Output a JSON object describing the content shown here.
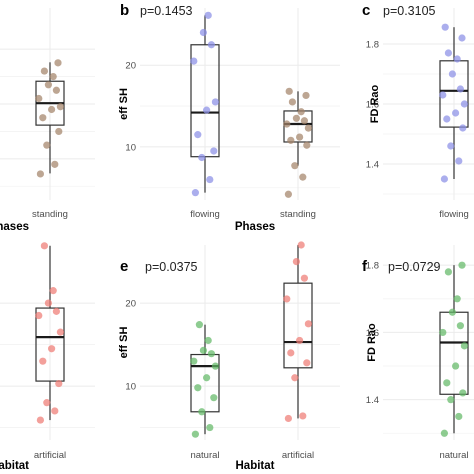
{
  "chart_data": [
    {
      "panel": "a",
      "type": "box",
      "title": "",
      "ylabel": "",
      "xlabel": "Phases",
      "xlabel_visible": "hases",
      "categories": [
        "standing"
      ],
      "point_color": "#a4846a",
      "ylim": [
        1.25,
        1.95
      ],
      "yticks": [
        1.4,
        1.6,
        1.8
      ],
      "series": [
        {
          "category": "standing",
          "box": {
            "q1": 1.523,
            "median": 1.603,
            "q3": 1.683,
            "whisker_low": 1.347,
            "whisker_high": 1.752
          },
          "points": [
            1.345,
            1.38,
            1.45,
            1.5,
            1.55,
            1.58,
            1.59,
            1.62,
            1.65,
            1.67,
            1.7,
            1.72,
            1.75
          ]
        }
      ]
    },
    {
      "panel": "b",
      "type": "box",
      "title": "p=0.1453",
      "ylabel": "eff SH",
      "xlabel": "Phases",
      "categories": [
        "flowing",
        "standing"
      ],
      "colors": [
        "#8a8fe6",
        "#a4846a"
      ],
      "ylim": [
        3.5,
        27
      ],
      "yticks": [
        10,
        20
      ],
      "series": [
        {
          "category": "flowing",
          "box": {
            "q1": 8.8,
            "median": 14.2,
            "q3": 22.5,
            "whisker_low": 4.4,
            "whisker_high": 26.1
          },
          "points": [
            4.4,
            6.0,
            8.7,
            9.5,
            11.5,
            14.5,
            15.5,
            20.5,
            22.5,
            24.0,
            26.1
          ]
        },
        {
          "category": "standing",
          "box": {
            "q1": 10.6,
            "median": 12.8,
            "q3": 14.4,
            "whisker_low": 7.7,
            "whisker_high": 16.8
          },
          "points": [
            4.2,
            6.3,
            7.7,
            10.2,
            10.8,
            11.2,
            12.3,
            12.8,
            13.2,
            13.5,
            14.3,
            15.5,
            16.3,
            16.8
          ]
        }
      ]
    },
    {
      "panel": "c",
      "type": "box",
      "title": "p=0.3105",
      "ylabel": "FD Rao",
      "xlabel": "",
      "categories": [
        "flowing"
      ],
      "point_color": "#8a8fe6",
      "ylim": [
        1.28,
        1.92
      ],
      "yticks": [
        1.4,
        1.6,
        1.8
      ],
      "series": [
        {
          "category": "flowing",
          "box": {
            "q1": 1.523,
            "median": 1.644,
            "q3": 1.744,
            "whisker_low": 1.35,
            "whisker_high": 1.856
          },
          "points": [
            1.35,
            1.41,
            1.46,
            1.52,
            1.55,
            1.57,
            1.6,
            1.63,
            1.65,
            1.7,
            1.75,
            1.77,
            1.82,
            1.856
          ]
        }
      ]
    },
    {
      "panel": "d",
      "type": "box",
      "title": "",
      "ylabel": "",
      "xlabel": "Habitat",
      "xlabel_visible": "abitat",
      "categories": [
        "artificial"
      ],
      "point_color": "#ee7b75",
      "ylim": [
        3.5,
        27
      ],
      "yticks": [
        10,
        20
      ],
      "series": [
        {
          "category": "artificial",
          "box": {
            "q1": 10.6,
            "median": 15.9,
            "q3": 19.4,
            "whisker_low": 5.9,
            "whisker_high": 26.9
          },
          "points": [
            5.9,
            7.0,
            8.0,
            10.3,
            13.0,
            14.5,
            16.5,
            18.5,
            19.0,
            20.0,
            21.5,
            26.9
          ]
        }
      ]
    },
    {
      "panel": "e",
      "type": "box",
      "title": "p=0.0375",
      "ylabel": "eff SH",
      "xlabel": "Habitat",
      "categories": [
        "natural",
        "artificial"
      ],
      "colors": [
        "#62b866",
        "#ee7b75"
      ],
      "ylim": [
        3.5,
        27
      ],
      "yticks": [
        10,
        20
      ],
      "series": [
        {
          "category": "natural",
          "box": {
            "q1": 6.9,
            "median": 12.4,
            "q3": 13.8,
            "whisker_low": 4.2,
            "whisker_high": 17.4
          },
          "points": [
            4.2,
            5.0,
            6.9,
            8.6,
            9.8,
            11.0,
            12.4,
            13.0,
            13.9,
            14.3,
            15.5,
            17.4
          ]
        },
        {
          "category": "artificial",
          "box": {
            "q1": 12.2,
            "median": 15.3,
            "q3": 22.4,
            "whisker_low": 6.1,
            "whisker_high": 27.0
          },
          "points": [
            6.1,
            6.4,
            11.0,
            12.8,
            14.0,
            15.5,
            17.5,
            20.5,
            23.0,
            25.0,
            27.0
          ]
        }
      ]
    },
    {
      "panel": "f",
      "type": "box",
      "title": "p=0.0729",
      "ylabel": "FD Rao",
      "xlabel": "",
      "categories": [
        "natural"
      ],
      "point_color": "#62b866",
      "ylim": [
        1.28,
        1.86
      ],
      "yticks": [
        1.4,
        1.6,
        1.8
      ],
      "series": [
        {
          "category": "natural",
          "box": {
            "q1": 1.416,
            "median": 1.57,
            "q3": 1.66,
            "whisker_low": 1.3,
            "whisker_high": 1.8
          },
          "points": [
            1.3,
            1.35,
            1.4,
            1.42,
            1.45,
            1.5,
            1.56,
            1.6,
            1.62,
            1.66,
            1.7,
            1.78,
            1.8
          ]
        }
      ]
    }
  ]
}
